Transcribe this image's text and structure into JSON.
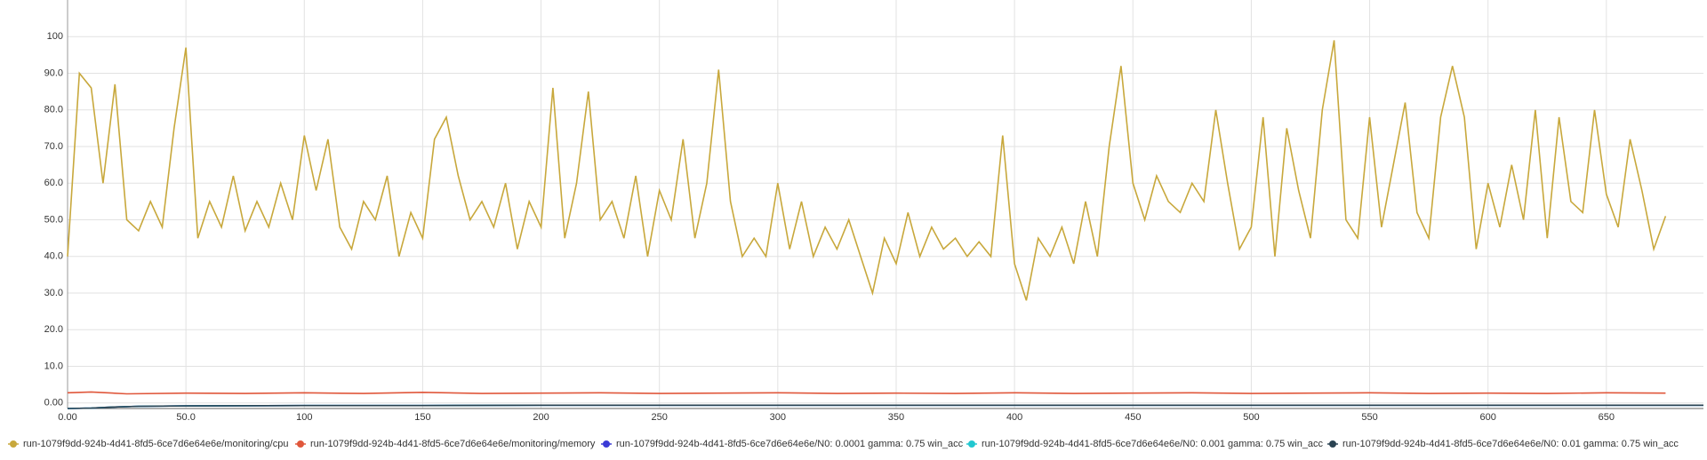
{
  "chart_data": {
    "type": "line",
    "xlim": [
      0,
      691
    ],
    "ylim": [
      -1.5,
      110
    ],
    "xticks": [
      {
        "value": 0,
        "label": "0.00"
      },
      {
        "value": 50,
        "label": "50.0"
      },
      100,
      150,
      200,
      250,
      300,
      350,
      400,
      450,
      500,
      550,
      600,
      650
    ],
    "yticks": [
      {
        "value": 0,
        "label": "0.00"
      },
      {
        "value": 10,
        "label": "10.0"
      },
      {
        "value": 20,
        "label": "20.0"
      },
      {
        "value": 30,
        "label": "30.0"
      },
      {
        "value": 40,
        "label": "40.0"
      },
      {
        "value": 50,
        "label": "50.0"
      },
      {
        "value": 60,
        "label": "60.0"
      },
      {
        "value": 70,
        "label": "70.0"
      },
      {
        "value": 80,
        "label": "80.0"
      },
      {
        "value": 90,
        "label": "90.0"
      },
      100
    ],
    "grid": true,
    "series": [
      {
        "name": "run-1079f9dd-924b-4d41-8fd5-6ce7d6e64e6e/monitoring/cpu",
        "color": "#c8a83c",
        "x": [
          0,
          5,
          10,
          15,
          20,
          25,
          30,
          35,
          40,
          45,
          50,
          55,
          60,
          65,
          70,
          75,
          80,
          85,
          90,
          95,
          100,
          105,
          110,
          115,
          120,
          125,
          130,
          135,
          140,
          145,
          150,
          155,
          160,
          165,
          170,
          175,
          180,
          185,
          190,
          195,
          200,
          205,
          210,
          215,
          220,
          225,
          230,
          235,
          240,
          245,
          250,
          255,
          260,
          265,
          270,
          275,
          280,
          285,
          290,
          295,
          300,
          305,
          310,
          315,
          320,
          325,
          330,
          335,
          340,
          345,
          350,
          355,
          360,
          365,
          370,
          375,
          380,
          385,
          390,
          395,
          400,
          405,
          410,
          415,
          420,
          425,
          430,
          435,
          440,
          445,
          450,
          455,
          460,
          465,
          470,
          475,
          480,
          485,
          490,
          495,
          500,
          505,
          510,
          515,
          520,
          525,
          530,
          535,
          540,
          545,
          550,
          555,
          560,
          565,
          570,
          575,
          580,
          585,
          590,
          595,
          600,
          605,
          610,
          615,
          620,
          625,
          630,
          635,
          640,
          645,
          650,
          655,
          660,
          665,
          670,
          675
        ],
        "values": [
          40,
          90,
          86,
          60,
          87,
          50,
          47,
          55,
          48,
          75,
          97,
          45,
          55,
          48,
          62,
          47,
          55,
          48,
          60,
          50,
          73,
          58,
          72,
          48,
          42,
          55,
          50,
          62,
          40,
          52,
          45,
          72,
          78,
          62,
          50,
          55,
          48,
          60,
          42,
          55,
          48,
          86,
          45,
          60,
          85,
          50,
          55,
          45,
          62,
          40,
          58,
          50,
          72,
          45,
          60,
          91,
          55,
          40,
          45,
          40,
          60,
          42,
          55,
          40,
          48,
          42,
          50,
          40,
          30,
          45,
          38,
          52,
          40,
          48,
          42,
          45,
          40,
          44,
          40,
          73,
          38,
          28,
          45,
          40,
          48,
          38,
          55,
          40,
          70,
          92,
          60,
          50,
          62,
          55,
          52,
          60,
          55,
          80,
          60,
          42,
          48,
          78,
          40,
          75,
          58,
          45,
          80,
          99,
          50,
          45,
          78,
          48,
          65,
          82,
          52,
          45,
          78,
          92,
          78,
          42,
          60,
          48,
          65,
          50,
          80,
          45,
          78,
          55,
          52,
          80,
          57,
          48,
          72,
          58,
          42,
          51
        ]
      },
      {
        "name": "run-1079f9dd-924b-4d41-8fd5-6ce7d6e64e6e/monitoring/memory",
        "color": "#e0573b",
        "x": [
          0,
          10,
          25,
          50,
          75,
          100,
          125,
          150,
          175,
          200,
          225,
          250,
          275,
          300,
          325,
          350,
          375,
          400,
          425,
          450,
          475,
          500,
          525,
          550,
          575,
          600,
          625,
          650,
          675
        ],
        "values": [
          2.8,
          3.0,
          2.5,
          2.7,
          2.6,
          2.8,
          2.6,
          2.9,
          2.6,
          2.7,
          2.8,
          2.6,
          2.7,
          2.8,
          2.6,
          2.7,
          2.6,
          2.8,
          2.6,
          2.7,
          2.8,
          2.6,
          2.7,
          2.8,
          2.6,
          2.7,
          2.6,
          2.8,
          2.7
        ]
      },
      {
        "name": "run-1079f9dd-924b-4d41-8fd5-6ce7d6e64e6e/N0: 0.0001 gamma: 0.75 win_acc",
        "color": "#3b3bd6",
        "x": [
          0,
          10,
          20,
          30,
          50,
          100,
          150,
          200,
          300,
          400,
          500,
          600,
          691
        ],
        "values": [
          -1.5,
          -1.4,
          -1.1,
          -0.9,
          -0.8,
          -0.7,
          -0.7,
          -0.6,
          -0.6,
          -0.6,
          -0.6,
          -0.6,
          -0.6
        ]
      },
      {
        "name": "run-1079f9dd-924b-4d41-8fd5-6ce7d6e64e6e/N0: 0.001 gamma: 0.75 win_acc",
        "color": "#22c7d0",
        "x": [
          0,
          10,
          20,
          30,
          50,
          100,
          150,
          200,
          300,
          400,
          500,
          600,
          691
        ],
        "values": [
          -1.5,
          -1.4,
          -1.1,
          -0.9,
          -0.8,
          -0.7,
          -0.7,
          -0.6,
          -0.6,
          -0.6,
          -0.6,
          -0.6,
          -0.6
        ]
      },
      {
        "name": "run-1079f9dd-924b-4d41-8fd5-6ce7d6e64e6e/N0: 0.01 gamma: 0.75 win_acc",
        "color": "#2a4352",
        "x": [
          0,
          10,
          20,
          30,
          50,
          100,
          150,
          200,
          300,
          400,
          500,
          600,
          691
        ],
        "values": [
          -1.5,
          -1.4,
          -1.1,
          -0.9,
          -0.8,
          -0.7,
          -0.7,
          -0.6,
          -0.6,
          -0.6,
          -0.6,
          -0.6,
          -0.6
        ]
      }
    ]
  }
}
